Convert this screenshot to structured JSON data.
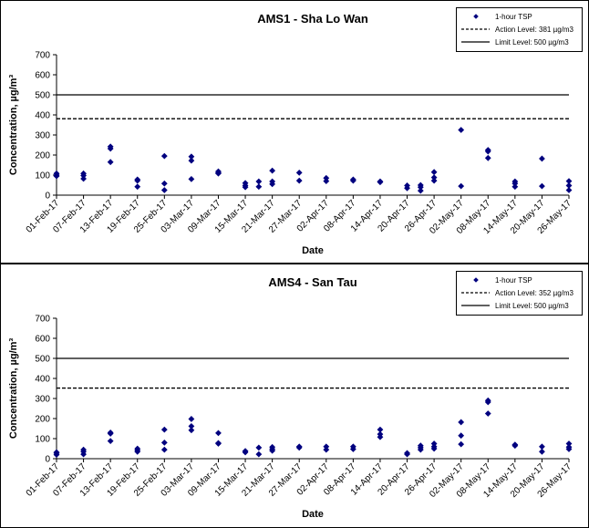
{
  "chart_data": [
    {
      "type": "scatter",
      "title": "AMS1 - Sha Lo Wan",
      "xlabel": "Date",
      "ylabel": "Concentration, µg/m³",
      "ylim": [
        0,
        700
      ],
      "yticks": [
        0,
        100,
        200,
        300,
        400,
        500,
        600,
        700
      ],
      "xlim": [
        "2017-02-01",
        "2017-05-26"
      ],
      "xticks": [
        "01-Feb-17",
        "07-Feb-17",
        "13-Feb-17",
        "19-Feb-17",
        "25-Feb-17",
        "03-Mar-17",
        "09-Mar-17",
        "15-Mar-17",
        "21-Mar-17",
        "27-Mar-17",
        "02-Apr-17",
        "08-Apr-17",
        "14-Apr-17",
        "20-Apr-17",
        "26-Apr-17",
        "02-May-17",
        "08-May-17",
        "14-May-17",
        "20-May-17",
        "26-May-17"
      ],
      "grid": false,
      "legend_position": "top-right",
      "colors": {
        "marker": "#00007f",
        "lines": "#000000"
      },
      "series": [
        {
          "name": "1-hour TSP",
          "kind": "scatter",
          "points": [
            {
              "x": "2017-02-01",
              "y": 95
            },
            {
              "x": "2017-02-01",
              "y": 100
            },
            {
              "x": "2017-02-01",
              "y": 108
            },
            {
              "x": "2017-02-07",
              "y": 82
            },
            {
              "x": "2017-02-07",
              "y": 98
            },
            {
              "x": "2017-02-07",
              "y": 108
            },
            {
              "x": "2017-02-13",
              "y": 165
            },
            {
              "x": "2017-02-13",
              "y": 232
            },
            {
              "x": "2017-02-13",
              "y": 242
            },
            {
              "x": "2017-02-19",
              "y": 42
            },
            {
              "x": "2017-02-19",
              "y": 72
            },
            {
              "x": "2017-02-19",
              "y": 78
            },
            {
              "x": "2017-02-25",
              "y": 25
            },
            {
              "x": "2017-02-25",
              "y": 58
            },
            {
              "x": "2017-02-25",
              "y": 195
            },
            {
              "x": "2017-03-03",
              "y": 80
            },
            {
              "x": "2017-03-03",
              "y": 172
            },
            {
              "x": "2017-03-03",
              "y": 192
            },
            {
              "x": "2017-03-09",
              "y": 108
            },
            {
              "x": "2017-03-09",
              "y": 112
            },
            {
              "x": "2017-03-09",
              "y": 118
            },
            {
              "x": "2017-03-15",
              "y": 40
            },
            {
              "x": "2017-03-15",
              "y": 48
            },
            {
              "x": "2017-03-15",
              "y": 60
            },
            {
              "x": "2017-03-18",
              "y": 42
            },
            {
              "x": "2017-03-18",
              "y": 68
            },
            {
              "x": "2017-03-21",
              "y": 55
            },
            {
              "x": "2017-03-21",
              "y": 68
            },
            {
              "x": "2017-03-21",
              "y": 122
            },
            {
              "x": "2017-03-27",
              "y": 72
            },
            {
              "x": "2017-03-27",
              "y": 112
            },
            {
              "x": "2017-04-02",
              "y": 70
            },
            {
              "x": "2017-04-02",
              "y": 85
            },
            {
              "x": "2017-04-08",
              "y": 72
            },
            {
              "x": "2017-04-08",
              "y": 78
            },
            {
              "x": "2017-04-14",
              "y": 65
            },
            {
              "x": "2017-04-14",
              "y": 68
            },
            {
              "x": "2017-04-20",
              "y": 35
            },
            {
              "x": "2017-04-20",
              "y": 48
            },
            {
              "x": "2017-04-23",
              "y": 22
            },
            {
              "x": "2017-04-23",
              "y": 40
            },
            {
              "x": "2017-04-23",
              "y": 50
            },
            {
              "x": "2017-04-26",
              "y": 72
            },
            {
              "x": "2017-04-26",
              "y": 88
            },
            {
              "x": "2017-04-26",
              "y": 115
            },
            {
              "x": "2017-05-02",
              "y": 45
            },
            {
              "x": "2017-05-02",
              "y": 325
            },
            {
              "x": "2017-05-08",
              "y": 185
            },
            {
              "x": "2017-05-08",
              "y": 218
            },
            {
              "x": "2017-05-08",
              "y": 225
            },
            {
              "x": "2017-05-14",
              "y": 42
            },
            {
              "x": "2017-05-14",
              "y": 58
            },
            {
              "x": "2017-05-14",
              "y": 68
            },
            {
              "x": "2017-05-20",
              "y": 45
            },
            {
              "x": "2017-05-20",
              "y": 182
            },
            {
              "x": "2017-05-26",
              "y": 25
            },
            {
              "x": "2017-05-26",
              "y": 48
            },
            {
              "x": "2017-05-26",
              "y": 70
            }
          ]
        },
        {
          "name": "Action Level: 381 µg/m3",
          "kind": "hline",
          "value": 381,
          "style": "dashed"
        },
        {
          "name": "Limit Level: 500 µg/m3",
          "kind": "hline",
          "value": 500,
          "style": "solid"
        }
      ]
    },
    {
      "type": "scatter",
      "title": "AMS4 - San Tau",
      "xlabel": "Date",
      "ylabel": "Concentration, µg/m³",
      "ylim": [
        0,
        700
      ],
      "yticks": [
        0,
        100,
        200,
        300,
        400,
        500,
        600,
        700
      ],
      "xlim": [
        "2017-02-01",
        "2017-05-26"
      ],
      "xticks": [
        "01-Feb-17",
        "07-Feb-17",
        "13-Feb-17",
        "19-Feb-17",
        "25-Feb-17",
        "03-Mar-17",
        "09-Mar-17",
        "15-Mar-17",
        "21-Mar-17",
        "27-Mar-17",
        "02-Apr-17",
        "08-Apr-17",
        "14-Apr-17",
        "20-Apr-17",
        "26-Apr-17",
        "02-May-17",
        "08-May-17",
        "14-May-17",
        "20-May-17",
        "26-May-17"
      ],
      "grid": false,
      "legend_position": "top-right",
      "colors": {
        "marker": "#00007f",
        "lines": "#000000"
      },
      "series": [
        {
          "name": "1-hour TSP",
          "kind": "scatter",
          "points": [
            {
              "x": "2017-02-01",
              "y": 20
            },
            {
              "x": "2017-02-01",
              "y": 28
            },
            {
              "x": "2017-02-01",
              "y": 32
            },
            {
              "x": "2017-02-07",
              "y": 22
            },
            {
              "x": "2017-02-07",
              "y": 35
            },
            {
              "x": "2017-02-07",
              "y": 45
            },
            {
              "x": "2017-02-13",
              "y": 88
            },
            {
              "x": "2017-02-13",
              "y": 125
            },
            {
              "x": "2017-02-13",
              "y": 130
            },
            {
              "x": "2017-02-19",
              "y": 35
            },
            {
              "x": "2017-02-19",
              "y": 42
            },
            {
              "x": "2017-02-19",
              "y": 50
            },
            {
              "x": "2017-02-25",
              "y": 45
            },
            {
              "x": "2017-02-25",
              "y": 80
            },
            {
              "x": "2017-02-25",
              "y": 145
            },
            {
              "x": "2017-03-03",
              "y": 142
            },
            {
              "x": "2017-03-03",
              "y": 162
            },
            {
              "x": "2017-03-03",
              "y": 198
            },
            {
              "x": "2017-03-09",
              "y": 75
            },
            {
              "x": "2017-03-09",
              "y": 78
            },
            {
              "x": "2017-03-09",
              "y": 128
            },
            {
              "x": "2017-03-15",
              "y": 32
            },
            {
              "x": "2017-03-15",
              "y": 38
            },
            {
              "x": "2017-03-18",
              "y": 22
            },
            {
              "x": "2017-03-18",
              "y": 55
            },
            {
              "x": "2017-03-21",
              "y": 40
            },
            {
              "x": "2017-03-21",
              "y": 48
            },
            {
              "x": "2017-03-21",
              "y": 58
            },
            {
              "x": "2017-03-27",
              "y": 55
            },
            {
              "x": "2017-03-27",
              "y": 60
            },
            {
              "x": "2017-04-02",
              "y": 45
            },
            {
              "x": "2017-04-02",
              "y": 60
            },
            {
              "x": "2017-04-08",
              "y": 48
            },
            {
              "x": "2017-04-08",
              "y": 60
            },
            {
              "x": "2017-04-14",
              "y": 108
            },
            {
              "x": "2017-04-14",
              "y": 122
            },
            {
              "x": "2017-04-14",
              "y": 145
            },
            {
              "x": "2017-04-20",
              "y": 22
            },
            {
              "x": "2017-04-20",
              "y": 28
            },
            {
              "x": "2017-04-23",
              "y": 45
            },
            {
              "x": "2017-04-23",
              "y": 55
            },
            {
              "x": "2017-04-23",
              "y": 65
            },
            {
              "x": "2017-04-26",
              "y": 50
            },
            {
              "x": "2017-04-26",
              "y": 60
            },
            {
              "x": "2017-04-26",
              "y": 75
            },
            {
              "x": "2017-05-02",
              "y": 72
            },
            {
              "x": "2017-05-02",
              "y": 115
            },
            {
              "x": "2017-05-02",
              "y": 182
            },
            {
              "x": "2017-05-08",
              "y": 225
            },
            {
              "x": "2017-05-08",
              "y": 282
            },
            {
              "x": "2017-05-08",
              "y": 290
            },
            {
              "x": "2017-05-14",
              "y": 65
            },
            {
              "x": "2017-05-14",
              "y": 70
            },
            {
              "x": "2017-05-20",
              "y": 35
            },
            {
              "x": "2017-05-20",
              "y": 60
            },
            {
              "x": "2017-05-26",
              "y": 48
            },
            {
              "x": "2017-05-26",
              "y": 58
            },
            {
              "x": "2017-05-26",
              "y": 75
            }
          ]
        },
        {
          "name": "Action Level: 352 µg/m3",
          "kind": "hline",
          "value": 352,
          "style": "dashed"
        },
        {
          "name": "Limit Level: 500 µg/m3",
          "kind": "hline",
          "value": 500,
          "style": "solid"
        }
      ]
    }
  ]
}
